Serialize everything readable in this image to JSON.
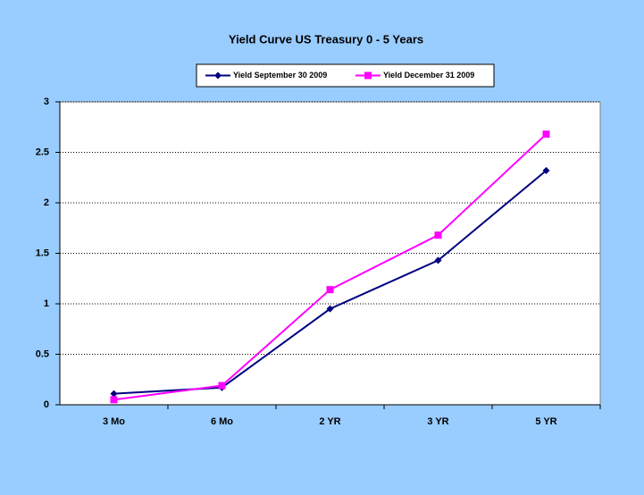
{
  "chart_data": {
    "type": "line",
    "title": "Yield Curve US Treasury 0 - 5 Years",
    "categories": [
      "3 Mo",
      "6 Mo",
      "2 YR",
      "3 YR",
      "5 YR"
    ],
    "series": [
      {
        "name": "Yield September 30 2009",
        "color": "#000080",
        "marker": "diamond",
        "values": [
          0.11,
          0.17,
          0.95,
          1.43,
          2.32
        ]
      },
      {
        "name": "Yield December 31 2009",
        "color": "#ff00ff",
        "marker": "square",
        "values": [
          0.05,
          0.19,
          1.14,
          1.68,
          2.68
        ]
      }
    ],
    "ylim": [
      0,
      3
    ],
    "yticks": [
      0,
      0.5,
      1,
      1.5,
      2,
      2.5,
      3
    ],
    "grid": true,
    "legend": "top"
  }
}
